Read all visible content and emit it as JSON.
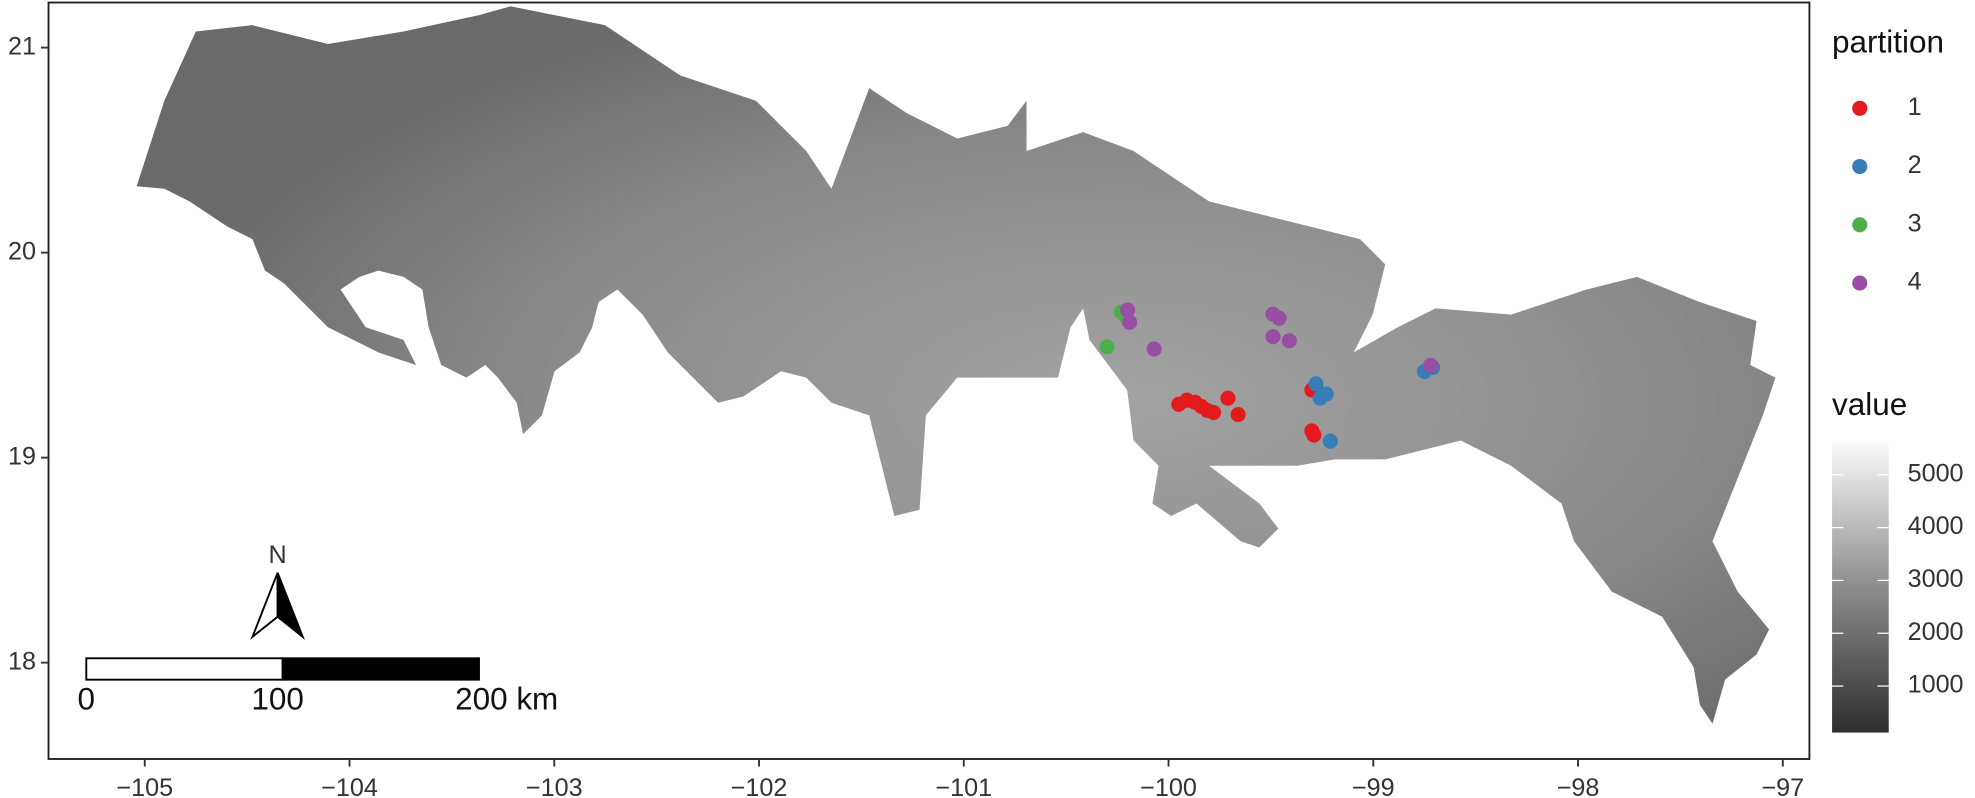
{
  "chart_data": {
    "type": "scatter",
    "xlim": [
      -105.47,
      -96.87
    ],
    "ylim": [
      17.53,
      21.22
    ],
    "xticks": [
      {
        "value": -105,
        "label": "−105"
      },
      {
        "value": -104,
        "label": "−104"
      },
      {
        "value": -103,
        "label": "−103"
      },
      {
        "value": -102,
        "label": "−102"
      },
      {
        "value": -101,
        "label": "−101"
      },
      {
        "value": -100,
        "label": "−100"
      },
      {
        "value": -99,
        "label": "−99"
      },
      {
        "value": -98,
        "label": "−98"
      },
      {
        "value": -97,
        "label": "−97"
      }
    ],
    "yticks": [
      18,
      19,
      20,
      21
    ],
    "legend_title": "partition",
    "series": [
      {
        "name": "1",
        "color": "#e41a1c",
        "x": [
          -99.95,
          -99.91,
          -99.87,
          -99.84,
          -99.81,
          -99.78,
          -99.71,
          -99.66,
          -99.3,
          -99.3,
          -99.29
        ],
        "y": [
          19.26,
          19.28,
          19.27,
          19.25,
          19.23,
          19.22,
          19.29,
          19.21,
          19.33,
          19.13,
          19.11
        ]
      },
      {
        "name": "2",
        "color": "#377eb8",
        "x": [
          -99.28,
          -99.26,
          -99.23,
          -99.21,
          -98.75,
          -98.71
        ],
        "y": [
          19.36,
          19.29,
          19.31,
          19.08,
          19.42,
          19.44
        ]
      },
      {
        "name": "3",
        "color": "#4daf4a",
        "x": [
          -100.3,
          -100.23,
          -100.21
        ],
        "y": [
          19.54,
          19.71,
          19.69
        ]
      },
      {
        "name": "4",
        "color": "#984ea3",
        "x": [
          -100.2,
          -100.19,
          -100.07,
          -99.49,
          -99.46,
          -99.49,
          -99.41,
          -98.72
        ],
        "y": [
          19.72,
          19.66,
          19.53,
          19.7,
          19.68,
          19.59,
          19.57,
          19.45
        ]
      }
    ],
    "colorbar": {
      "title": "value",
      "lim": [
        120,
        5600
      ],
      "ticks": [
        1000,
        2000,
        3000,
        4000,
        5000
      ]
    },
    "scale_bar": {
      "labels": [
        "0",
        "100",
        "200 km"
      ]
    },
    "north_label": "N"
  }
}
